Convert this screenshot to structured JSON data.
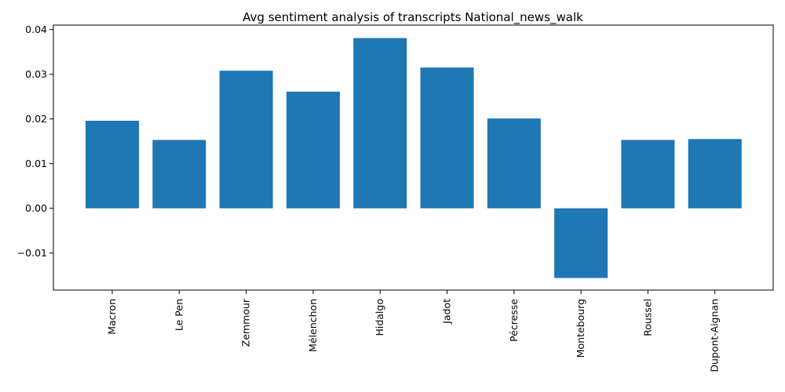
{
  "chart_data": {
    "type": "bar",
    "title": "Avg sentiment analysis of transcripts National_news_walk",
    "xlabel": "",
    "ylabel": "",
    "categories": [
      "Macron",
      "Le Pen",
      "Zemmour",
      "Mélenchon",
      "Hidalgo",
      "Jadot",
      "Pécresse",
      "Montebourg",
      "Roussel",
      "Dupont-Aignan"
    ],
    "values": [
      0.0196,
      0.0153,
      0.0308,
      0.0261,
      0.0381,
      0.0315,
      0.0201,
      -0.0156,
      0.0153,
      0.0155
    ],
    "ylim": [
      -0.0183,
      0.041
    ],
    "yticks": [
      -0.01,
      0.0,
      0.01,
      0.02,
      0.03,
      0.04
    ],
    "ytick_labels": [
      "−0.01",
      "0.00",
      "0.01",
      "0.02",
      "0.03",
      "0.04"
    ],
    "bar_color": "#1f77b4",
    "grid": false,
    "legend": "none"
  }
}
